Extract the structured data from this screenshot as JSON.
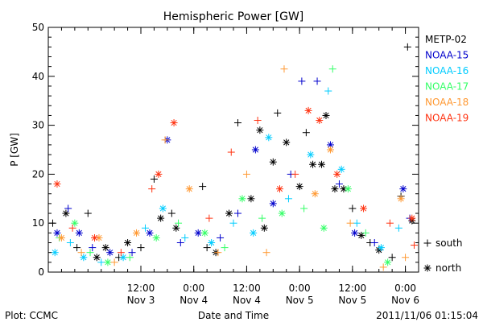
{
  "chart_data": {
    "type": "scatter",
    "title": "Hemispheric Power [GW]",
    "ylabel": "P [GW]",
    "xlabel": "Date and Time",
    "ylim": [
      0,
      50
    ],
    "yticks": [
      "0",
      "10",
      "20",
      "30",
      "40",
      "50"
    ],
    "xlim": [
      "2011-11-02 15:00",
      "2011-11-06 03:00"
    ],
    "xticks": [
      {
        "time": "2011-11-03 12:00",
        "top": "12:00",
        "bottom": "Nov 3"
      },
      {
        "time": "2011-11-04 00:00",
        "top": "0:00",
        "bottom": "Nov 4"
      },
      {
        "time": "2011-11-04 12:00",
        "top": "12:00",
        "bottom": "Nov 4"
      },
      {
        "time": "2011-11-05 00:00",
        "top": "0:00",
        "bottom": "Nov 5"
      },
      {
        "time": "2011-11-05 12:00",
        "top": "12:00",
        "bottom": "Nov 5"
      },
      {
        "time": "2011-11-06 00:00",
        "top": "0:00",
        "bottom": "Nov 6"
      }
    ],
    "markers": [
      {
        "symbol": "+",
        "label": "south"
      },
      {
        "symbol": "*",
        "label": "north"
      }
    ],
    "series": [
      {
        "name": "METP-02",
        "color": "#000000",
        "points": [
          {
            "t": "2011-11-02 16:00",
            "p": 10,
            "m": "+"
          },
          {
            "t": "2011-11-02 19:00",
            "p": 12,
            "m": "*"
          },
          {
            "t": "2011-11-02 21:30",
            "p": 5,
            "m": "+"
          },
          {
            "t": "2011-11-03 00:00",
            "p": 12,
            "m": "+"
          },
          {
            "t": "2011-11-03 02:00",
            "p": 3,
            "m": "*"
          },
          {
            "t": "2011-11-03 04:00",
            "p": 5,
            "m": "*"
          },
          {
            "t": "2011-11-03 07:00",
            "p": 3,
            "m": "+"
          },
          {
            "t": "2011-11-03 09:00",
            "p": 6,
            "m": "*"
          },
          {
            "t": "2011-11-03 12:00",
            "p": 5,
            "m": "+"
          },
          {
            "t": "2011-11-03 15:00",
            "p": 19,
            "m": "+"
          },
          {
            "t": "2011-11-03 16:30",
            "p": 11,
            "m": "*"
          },
          {
            "t": "2011-11-03 19:00",
            "p": 12,
            "m": "+"
          },
          {
            "t": "2011-11-03 20:00",
            "p": 9,
            "m": "*"
          },
          {
            "t": "2011-11-04 02:00",
            "p": 17.5,
            "m": "+"
          },
          {
            "t": "2011-11-04 03:00",
            "p": 5,
            "m": "+"
          },
          {
            "t": "2011-11-04 05:00",
            "p": 4,
            "m": "*"
          },
          {
            "t": "2011-11-04 08:00",
            "p": 12,
            "m": "*"
          },
          {
            "t": "2011-11-04 10:00",
            "p": 30.5,
            "m": "+"
          },
          {
            "t": "2011-11-04 13:00",
            "p": 15,
            "m": "*"
          },
          {
            "t": "2011-11-04 15:00",
            "p": 29,
            "m": "*"
          },
          {
            "t": "2011-11-04 16:00",
            "p": 9,
            "m": "*"
          },
          {
            "t": "2011-11-04 18:00",
            "p": 22.5,
            "m": "*"
          },
          {
            "t": "2011-11-04 19:00",
            "p": 32.5,
            "m": "+"
          },
          {
            "t": "2011-11-04 21:00",
            "p": 26.5,
            "m": "*"
          },
          {
            "t": "2011-11-05 00:00",
            "p": 17.5,
            "m": "*"
          },
          {
            "t": "2011-11-05 01:30",
            "p": 28.5,
            "m": "+"
          },
          {
            "t": "2011-11-05 03:00",
            "p": 22,
            "m": "*"
          },
          {
            "t": "2011-11-05 05:00",
            "p": 22,
            "m": "*"
          },
          {
            "t": "2011-11-05 06:00",
            "p": 32,
            "m": "*"
          },
          {
            "t": "2011-11-05 08:00",
            "p": 17,
            "m": "*"
          },
          {
            "t": "2011-11-05 10:00",
            "p": 17,
            "m": "*"
          },
          {
            "t": "2011-11-05 12:00",
            "p": 13,
            "m": "+"
          },
          {
            "t": "2011-11-05 14:00",
            "p": 7.5,
            "m": "*"
          },
          {
            "t": "2011-11-05 16:00",
            "p": 6,
            "m": "+"
          },
          {
            "t": "2011-11-05 18:00",
            "p": 4.5,
            "m": "*"
          },
          {
            "t": "2011-11-05 21:00",
            "p": 3,
            "m": "+"
          },
          {
            "t": "2011-11-05 23:00",
            "p": 15.5,
            "m": "+"
          },
          {
            "t": "2011-11-06 00:30",
            "p": 46,
            "m": "+"
          },
          {
            "t": "2011-11-06 01:30",
            "p": 10.5,
            "m": "*"
          }
        ]
      },
      {
        "name": "NOAA-15",
        "color": "#0000cc",
        "points": [
          {
            "t": "2011-11-02 17:00",
            "p": 8,
            "m": "*"
          },
          {
            "t": "2011-11-02 19:30",
            "p": 13,
            "m": "+"
          },
          {
            "t": "2011-11-02 22:00",
            "p": 8,
            "m": "*"
          },
          {
            "t": "2011-11-03 01:00",
            "p": 5,
            "m": "+"
          },
          {
            "t": "2011-11-03 05:00",
            "p": 4,
            "m": "*"
          },
          {
            "t": "2011-11-03 10:00",
            "p": 4,
            "m": "+"
          },
          {
            "t": "2011-11-03 14:00",
            "p": 8,
            "m": "*"
          },
          {
            "t": "2011-11-03 18:00",
            "p": 27,
            "m": "*"
          },
          {
            "t": "2011-11-03 21:00",
            "p": 6,
            "m": "+"
          },
          {
            "t": "2011-11-04 01:00",
            "p": 8,
            "m": "*"
          },
          {
            "t": "2011-11-04 06:00",
            "p": 7,
            "m": "+"
          },
          {
            "t": "2011-11-04 10:00",
            "p": 12,
            "m": "+"
          },
          {
            "t": "2011-11-04 14:00",
            "p": 25,
            "m": "*"
          },
          {
            "t": "2011-11-04 18:00",
            "p": 14,
            "m": "*"
          },
          {
            "t": "2011-11-04 22:00",
            "p": 20,
            "m": "+"
          },
          {
            "t": "2011-11-05 00:30",
            "p": 39,
            "m": "+"
          },
          {
            "t": "2011-11-05 04:00",
            "p": 39,
            "m": "+"
          },
          {
            "t": "2011-11-05 07:00",
            "p": 26,
            "m": "*"
          },
          {
            "t": "2011-11-05 09:00",
            "p": 18,
            "m": "+"
          },
          {
            "t": "2011-11-05 12:30",
            "p": 8,
            "m": "*"
          },
          {
            "t": "2011-11-05 17:00",
            "p": 6,
            "m": "+"
          },
          {
            "t": "2011-11-05 23:30",
            "p": 17,
            "m": "*"
          },
          {
            "t": "2011-11-06 01:00",
            "p": 11,
            "m": "+"
          }
        ]
      },
      {
        "name": "NOAA-16",
        "color": "#00ccff",
        "points": [
          {
            "t": "2011-11-02 16:30",
            "p": 4,
            "m": "*"
          },
          {
            "t": "2011-11-02 20:00",
            "p": 6,
            "m": "+"
          },
          {
            "t": "2011-11-02 23:00",
            "p": 3,
            "m": "*"
          },
          {
            "t": "2011-11-03 03:00",
            "p": 2,
            "m": "+"
          },
          {
            "t": "2011-11-03 08:00",
            "p": 3,
            "m": "*"
          },
          {
            "t": "2011-11-03 13:00",
            "p": 9,
            "m": "+"
          },
          {
            "t": "2011-11-03 17:00",
            "p": 13,
            "m": "*"
          },
          {
            "t": "2011-11-03 22:00",
            "p": 7,
            "m": "+"
          },
          {
            "t": "2011-11-04 04:00",
            "p": 6,
            "m": "*"
          },
          {
            "t": "2011-11-04 09:00",
            "p": 10,
            "m": "+"
          },
          {
            "t": "2011-11-04 13:30",
            "p": 8,
            "m": "*"
          },
          {
            "t": "2011-11-04 17:00",
            "p": 27.5,
            "m": "*"
          },
          {
            "t": "2011-11-04 21:30",
            "p": 15,
            "m": "+"
          },
          {
            "t": "2011-11-05 02:30",
            "p": 24,
            "m": "*"
          },
          {
            "t": "2011-11-05 06:30",
            "p": 37,
            "m": "+"
          },
          {
            "t": "2011-11-05 09:30",
            "p": 21,
            "m": "*"
          },
          {
            "t": "2011-11-05 13:00",
            "p": 10,
            "m": "+"
          },
          {
            "t": "2011-11-05 18:30",
            "p": 5,
            "m": "*"
          },
          {
            "t": "2011-11-05 22:30",
            "p": 9,
            "m": "+"
          }
        ]
      },
      {
        "name": "NOAA-17",
        "color": "#33ff66",
        "points": [
          {
            "t": "2011-11-02 17:30",
            "p": 7,
            "m": "+"
          },
          {
            "t": "2011-11-02 21:00",
            "p": 10,
            "m": "*"
          },
          {
            "t": "2011-11-03 00:30",
            "p": 4,
            "m": "+"
          },
          {
            "t": "2011-11-03 04:30",
            "p": 2,
            "m": "*"
          },
          {
            "t": "2011-11-03 09:30",
            "p": 3,
            "m": "+"
          },
          {
            "t": "2011-11-03 15:30",
            "p": 7,
            "m": "*"
          },
          {
            "t": "2011-11-03 20:30",
            "p": 10,
            "m": "+"
          },
          {
            "t": "2011-11-04 02:30",
            "p": 8,
            "m": "*"
          },
          {
            "t": "2011-11-04 07:00",
            "p": 5,
            "m": "+"
          },
          {
            "t": "2011-11-04 11:00",
            "p": 15,
            "m": "*"
          },
          {
            "t": "2011-11-04 15:30",
            "p": 11,
            "m": "+"
          },
          {
            "t": "2011-11-04 20:00",
            "p": 12,
            "m": "*"
          },
          {
            "t": "2011-11-05 01:00",
            "p": 13,
            "m": "+"
          },
          {
            "t": "2011-11-05 05:30",
            "p": 9,
            "m": "*"
          },
          {
            "t": "2011-11-05 07:30",
            "p": 41.5,
            "m": "+"
          },
          {
            "t": "2011-11-05 11:00",
            "p": 17,
            "m": "*"
          },
          {
            "t": "2011-11-05 15:00",
            "p": 8,
            "m": "+"
          },
          {
            "t": "2011-11-05 20:00",
            "p": 2,
            "m": "*"
          }
        ]
      },
      {
        "name": "NOAA-18",
        "color": "#ff9933",
        "points": [
          {
            "t": "2011-11-02 18:00",
            "p": 7,
            "m": "*"
          },
          {
            "t": "2011-11-02 22:30",
            "p": 4,
            "m": "+"
          },
          {
            "t": "2011-11-03 02:30",
            "p": 7,
            "m": "*"
          },
          {
            "t": "2011-11-03 06:00",
            "p": 2,
            "m": "+"
          },
          {
            "t": "2011-11-03 11:00",
            "p": 8,
            "m": "*"
          },
          {
            "t": "2011-11-03 17:30",
            "p": 27,
            "m": "+"
          },
          {
            "t": "2011-11-03 23:00",
            "p": 17,
            "m": "*"
          },
          {
            "t": "2011-11-04 05:30",
            "p": 4,
            "m": "+"
          },
          {
            "t": "2011-11-04 12:00",
            "p": 20,
            "m": "+"
          },
          {
            "t": "2011-11-04 16:30",
            "p": 4,
            "m": "+"
          },
          {
            "t": "2011-11-04 20:30",
            "p": 41.5,
            "m": "+"
          },
          {
            "t": "2011-11-05 03:30",
            "p": 16,
            "m": "*"
          },
          {
            "t": "2011-11-05 07:00",
            "p": 25,
            "m": "*"
          },
          {
            "t": "2011-11-05 11:30",
            "p": 10,
            "m": "+"
          },
          {
            "t": "2011-11-05 19:00",
            "p": 1,
            "m": "+"
          },
          {
            "t": "2011-11-05 23:00",
            "p": 15,
            "m": "*"
          },
          {
            "t": "2011-11-06 00:00",
            "p": 3,
            "m": "+"
          }
        ]
      },
      {
        "name": "NOAA-19",
        "color": "#ff3311",
        "points": [
          {
            "t": "2011-11-02 17:00",
            "p": 18,
            "m": "*"
          },
          {
            "t": "2011-11-02 20:30",
            "p": 9,
            "m": "+"
          },
          {
            "t": "2011-11-03 01:30",
            "p": 7,
            "m": "*"
          },
          {
            "t": "2011-11-03 07:30",
            "p": 4,
            "m": "+"
          },
          {
            "t": "2011-11-03 14:30",
            "p": 17,
            "m": "+"
          },
          {
            "t": "2011-11-03 16:00",
            "p": 20,
            "m": "*"
          },
          {
            "t": "2011-11-03 19:30",
            "p": 30.5,
            "m": "*"
          },
          {
            "t": "2011-11-04 03:30",
            "p": 11,
            "m": "+"
          },
          {
            "t": "2011-11-04 08:30",
            "p": 24.5,
            "m": "+"
          },
          {
            "t": "2011-11-04 14:30",
            "p": 31,
            "m": "+"
          },
          {
            "t": "2011-11-04 19:30",
            "p": 17,
            "m": "*"
          },
          {
            "t": "2011-11-04 23:00",
            "p": 20,
            "m": "+"
          },
          {
            "t": "2011-11-05 02:00",
            "p": 33,
            "m": "*"
          },
          {
            "t": "2011-11-05 04:30",
            "p": 31,
            "m": "*"
          },
          {
            "t": "2011-11-05 08:30",
            "p": 20,
            "m": "*"
          },
          {
            "t": "2011-11-05 14:30",
            "p": 13,
            "m": "*"
          },
          {
            "t": "2011-11-05 20:30",
            "p": 10,
            "m": "+"
          },
          {
            "t": "2011-11-06 01:30",
            "p": 11,
            "m": "*"
          },
          {
            "t": "2011-11-06 02:00",
            "p": 5.5,
            "m": "+"
          }
        ]
      }
    ]
  },
  "footer": {
    "left": "Plot: CCMC",
    "right": "2011/11/06 01:15:04"
  }
}
